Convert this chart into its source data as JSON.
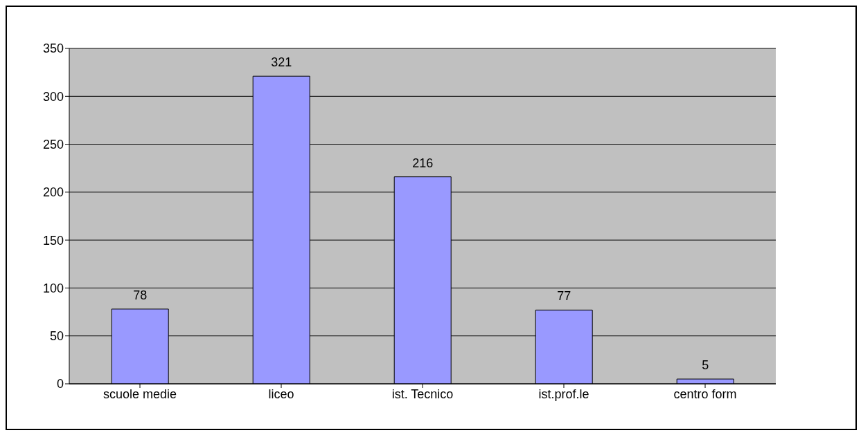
{
  "chart_data": {
    "type": "bar",
    "categories": [
      "scuole medie",
      "liceo",
      "ist. Tecnico",
      "ist.prof.le",
      "centro form"
    ],
    "values": [
      78,
      321,
      216,
      77,
      5
    ],
    "color": "#9999ff",
    "ylim": [
      0,
      350
    ],
    "yticks": [
      0,
      50,
      100,
      150,
      200,
      250,
      300,
      350
    ],
    "grid": "y",
    "data_labels": true,
    "legend": false
  }
}
